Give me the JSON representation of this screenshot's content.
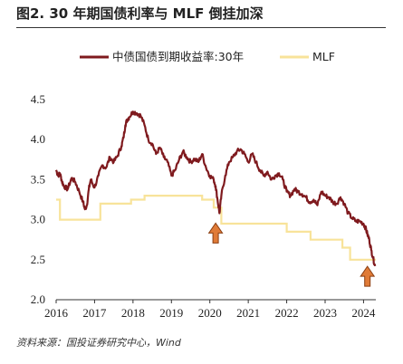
{
  "title": "图2. 30 年期国债利率与 MLF 倒挂加深",
  "source": "资料来源：国投证券研究中心，Wind",
  "colors": {
    "bond": "#7f1a1e",
    "mlf": "#f8e39a",
    "arrow": "#e07b37",
    "arrow_edge": "#8a3e12"
  },
  "chart_data": {
    "type": "line",
    "xlim": [
      2016.0,
      2024.32
    ],
    "ylim": [
      2.0,
      4.5
    ],
    "x_ticks": [
      "2016",
      "2017",
      "2018",
      "2019",
      "2020",
      "2021",
      "2022",
      "2023",
      "2024"
    ],
    "y_ticks": [
      "2.0",
      "2.5",
      "3.0",
      "3.5",
      "4.0",
      "4.5"
    ],
    "series": [
      {
        "name": "中债国债到期收益率:30年",
        "x": [
          2016.0,
          2016.05,
          2016.1,
          2016.15,
          2016.2,
          2016.3,
          2016.4,
          2016.5,
          2016.6,
          2016.7,
          2016.75,
          2016.8,
          2016.85,
          2016.9,
          2017.0,
          2017.1,
          2017.2,
          2017.3,
          2017.4,
          2017.5,
          2017.6,
          2017.7,
          2017.75,
          2017.8,
          2017.85,
          2017.9,
          2018.0,
          2018.1,
          2018.2,
          2018.3,
          2018.4,
          2018.5,
          2018.6,
          2018.7,
          2018.8,
          2018.9,
          2019.0,
          2019.1,
          2019.2,
          2019.3,
          2019.4,
          2019.5,
          2019.6,
          2019.7,
          2019.8,
          2019.9,
          2020.0,
          2020.1,
          2020.15,
          2020.2,
          2020.25,
          2020.3,
          2020.4,
          2020.5,
          2020.6,
          2020.7,
          2020.8,
          2020.9,
          2021.0,
          2021.1,
          2021.2,
          2021.3,
          2021.4,
          2021.5,
          2021.6,
          2021.7,
          2021.8,
          2021.9,
          2022.0,
          2022.1,
          2022.2,
          2022.3,
          2022.4,
          2022.5,
          2022.6,
          2022.7,
          2022.8,
          2022.9,
          2023.0,
          2023.1,
          2023.2,
          2023.3,
          2023.4,
          2023.5,
          2023.6,
          2023.7,
          2023.8,
          2023.9,
          2024.0,
          2024.05,
          2024.1,
          2024.15,
          2024.2,
          2024.25,
          2024.3
        ],
        "values": [
          3.62,
          3.55,
          3.58,
          3.48,
          3.42,
          3.38,
          3.52,
          3.47,
          3.35,
          3.22,
          3.13,
          3.18,
          3.38,
          3.5,
          3.4,
          3.55,
          3.68,
          3.65,
          3.78,
          3.72,
          3.8,
          3.92,
          4.02,
          4.18,
          4.25,
          4.28,
          4.35,
          4.33,
          4.3,
          4.18,
          4.0,
          3.95,
          3.82,
          3.9,
          3.78,
          3.72,
          3.55,
          3.62,
          3.75,
          3.85,
          3.78,
          3.72,
          3.76,
          3.72,
          3.82,
          3.65,
          3.55,
          3.5,
          3.42,
          3.25,
          3.08,
          3.3,
          3.55,
          3.72,
          3.78,
          3.85,
          3.88,
          3.82,
          3.72,
          3.82,
          3.72,
          3.62,
          3.55,
          3.6,
          3.5,
          3.55,
          3.58,
          3.5,
          3.35,
          3.3,
          3.38,
          3.35,
          3.32,
          3.28,
          3.22,
          3.25,
          3.18,
          3.35,
          3.3,
          3.28,
          3.22,
          3.2,
          3.28,
          3.2,
          3.08,
          3.02,
          2.98,
          2.98,
          2.95,
          2.9,
          2.82,
          2.75,
          2.62,
          2.52,
          2.42
        ]
      },
      {
        "name": "MLF",
        "x": [
          2016.0,
          2016.1,
          2016.1,
          2017.15,
          2017.15,
          2017.95,
          2017.95,
          2018.3,
          2018.3,
          2019.8,
          2019.8,
          2020.1,
          2020.1,
          2020.3,
          2020.3,
          2022.0,
          2022.0,
          2022.62,
          2022.62,
          2023.45,
          2023.45,
          2023.65,
          2023.65,
          2024.0,
          2024.0,
          2024.32
        ],
        "values": [
          3.25,
          3.25,
          3.0,
          3.0,
          3.2,
          3.2,
          3.25,
          3.25,
          3.3,
          3.3,
          3.25,
          3.25,
          3.15,
          3.15,
          2.95,
          2.95,
          2.85,
          2.85,
          2.75,
          2.75,
          2.65,
          2.65,
          2.5,
          2.5,
          2.5,
          2.5
        ]
      }
    ],
    "arrows": [
      {
        "x": 2020.15,
        "y": 2.98
      },
      {
        "x": 2024.1,
        "y": 2.44
      }
    ]
  }
}
